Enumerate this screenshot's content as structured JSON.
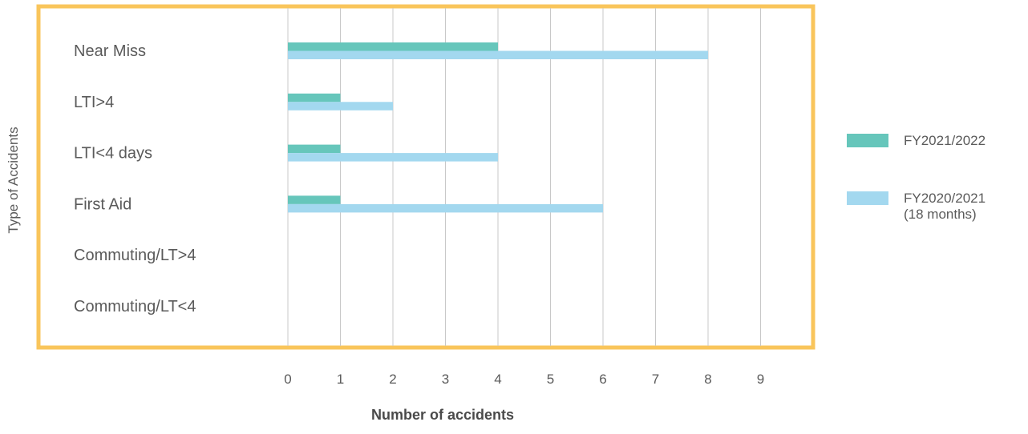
{
  "chart_data": {
    "type": "bar",
    "orientation": "horizontal",
    "categories": [
      "Near Miss",
      "LTI>4",
      "LTI<4 days",
      "First Aid",
      "Commuting/LT>4",
      "Commuting/LT<4"
    ],
    "series": [
      {
        "name": "FY2021/2022",
        "values": [
          4,
          1,
          1,
          1,
          0,
          0
        ],
        "color": "#66c6bb"
      },
      {
        "name": "FY2020/2021 (18 months)",
        "values": [
          8,
          2,
          4,
          6,
          0,
          0
        ],
        "color": "#a3d8ef"
      }
    ],
    "legend": [
      {
        "lines": [
          "FY2021/2022"
        ],
        "color": "#66c6bb"
      },
      {
        "lines": [
          "FY2020/2021",
          "(18 months)"
        ],
        "color": "#a3d8ef"
      }
    ],
    "xticks": [
      "0",
      "1",
      "2",
      "3",
      "4",
      "5",
      "6",
      "7",
      "8",
      "9"
    ],
    "xlim": [
      0,
      9
    ],
    "xlabel": "Number of accidents",
    "ylabel": "Type of Accidents",
    "grid": "vertical",
    "legend_position": "right",
    "frame_color": "#f9c55b",
    "grid_color": "#c8c8c8"
  }
}
